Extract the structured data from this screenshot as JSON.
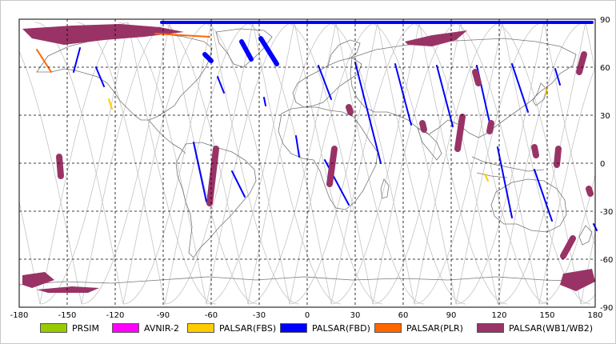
{
  "map": {
    "lon_ticks": [
      "-180",
      "-150",
      "-120",
      "-90",
      "-60",
      "-30",
      "0",
      "30",
      "60",
      "90",
      "120",
      "150",
      "180"
    ],
    "lat_ticks": [
      "90",
      "60",
      "30",
      "0",
      "-30",
      "-60",
      "-90"
    ]
  },
  "legend": [
    {
      "label": "PRSIM",
      "color": "#99cc00"
    },
    {
      "label": "AVNIR-2",
      "color": "#ff00ff"
    },
    {
      "label": "PALSAR(FBS)",
      "color": "#ffcc00"
    },
    {
      "label": "PALSAR(FBD)",
      "color": "#0000ff"
    },
    {
      "label": "PALSAR(PLR)",
      "color": "#ff6600"
    },
    {
      "label": "PALSAR(WB1/WB2)",
      "color": "#993366"
    }
  ]
}
